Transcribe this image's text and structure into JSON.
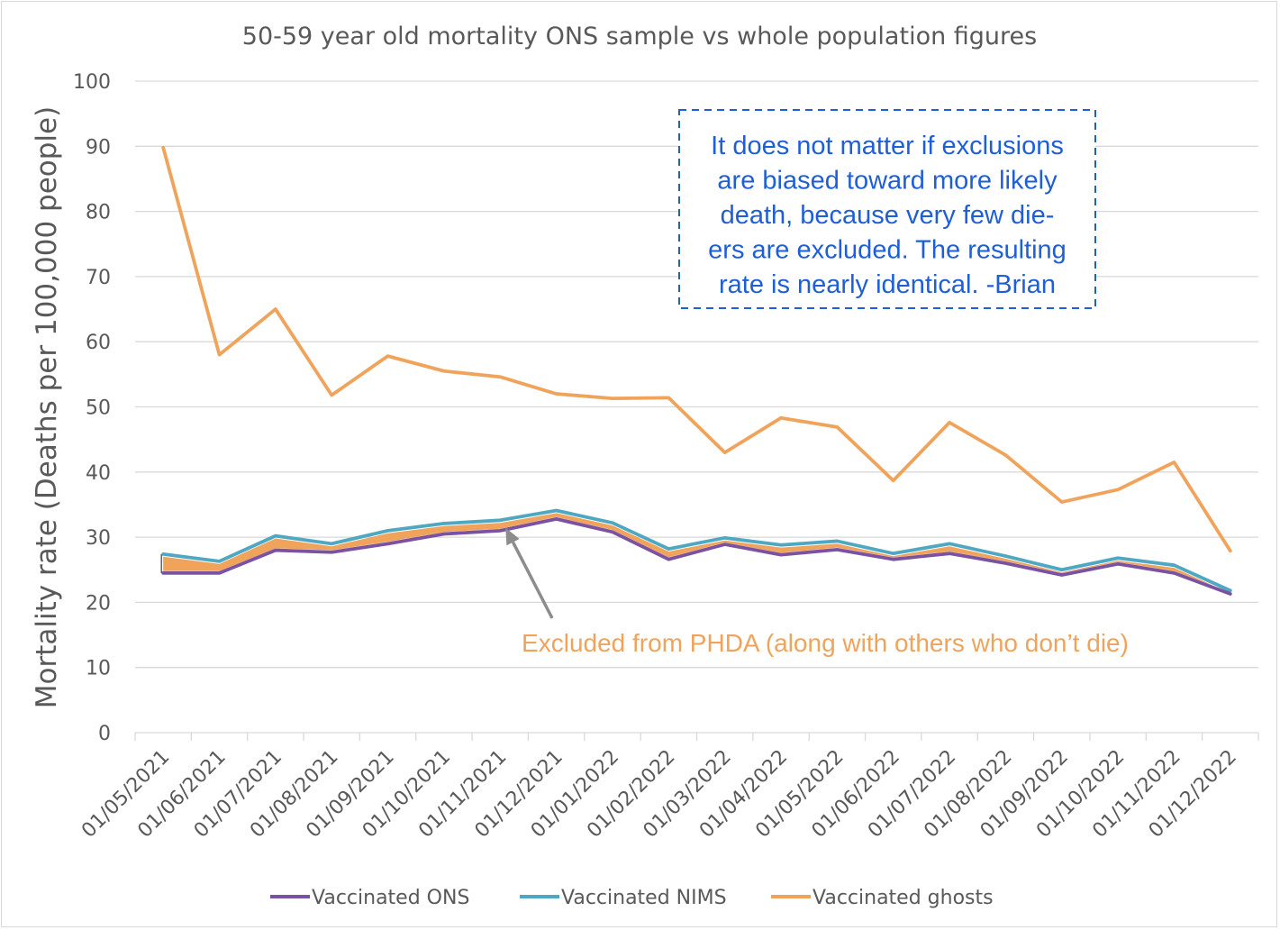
{
  "chart_data": {
    "type": "line",
    "title": "50-59 year old mortality ONS sample vs whole population figures",
    "ylabel": "Mortality rate (Deaths per 100,000 people)",
    "xlabel": "",
    "ylim": [
      0,
      100
    ],
    "yticks": [
      0,
      10,
      20,
      30,
      40,
      50,
      60,
      70,
      80,
      90,
      100
    ],
    "grid": true,
    "legend_position": "bottom",
    "categories": [
      "01/05/2021",
      "01/06/2021",
      "01/07/2021",
      "01/08/2021",
      "01/09/2021",
      "01/10/2021",
      "01/11/2021",
      "01/12/2021",
      "01/01/2022",
      "01/02/2022",
      "01/03/2022",
      "01/04/2022",
      "01/05/2022",
      "01/06/2022",
      "01/07/2022",
      "01/08/2022",
      "01/09/2022",
      "01/10/2022",
      "01/11/2022",
      "01/12/2022"
    ],
    "series": [
      {
        "name": "Vaccinated ONS",
        "color": "#7b52a1",
        "values": [
          24.5,
          24.5,
          28.0,
          27.7,
          29.0,
          30.5,
          31.0,
          32.8,
          30.8,
          26.6,
          28.9,
          27.3,
          28.1,
          26.6,
          27.5,
          26.0,
          24.2,
          25.9,
          24.5,
          21.3
        ]
      },
      {
        "name": "Vaccinated NIMS",
        "color": "#4fa8c2",
        "values": [
          27.4,
          26.3,
          30.2,
          29.0,
          31.0,
          32.1,
          32.6,
          34.1,
          32.2,
          28.2,
          29.9,
          28.8,
          29.4,
          27.5,
          29.0,
          27.1,
          25.0,
          26.8,
          25.7,
          21.8
        ]
      },
      {
        "name": "Vaccinated ghosts",
        "color": "#f0a35b",
        "values": [
          89.8,
          58.0,
          65.0,
          51.8,
          57.8,
          55.5,
          54.6,
          52.0,
          51.3,
          51.4,
          43.0,
          48.3,
          46.9,
          38.7,
          47.6,
          42.6,
          35.4,
          37.3,
          41.5,
          27.9
        ]
      }
    ],
    "annotations": {
      "note_lines": [
        "It does not matter if exclusions",
        "are biased toward more likely",
        "death, because very few die-",
        "ers are excluded. The resulting",
        "rate is nearly identical. -Brian"
      ],
      "note_color": "#1f5fd6",
      "excluded_label": "Excluded from PHDA (along with others who don’t die)",
      "excluded_color": "#f0a35b",
      "arrow_color": "#8c8c8c",
      "arrow_target_category": "01/11/2021",
      "arrow_target_value": 32.0
    }
  }
}
